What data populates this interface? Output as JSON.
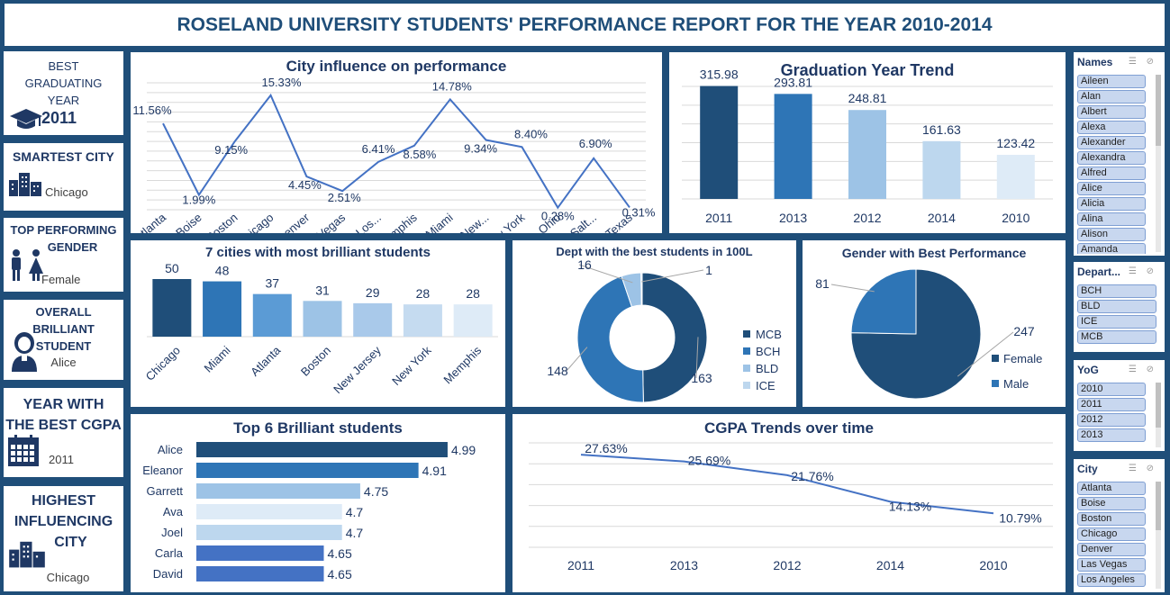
{
  "title": "ROSELAND UNIVERSITY STUDENTS' PERFORMANCE REPORT FOR THE YEAR 2010-2014",
  "kpis": {
    "best_year": {
      "line1": "BEST",
      "line2": "GRADUATING",
      "line3": "YEAR",
      "value": "2011"
    },
    "smartest_city": {
      "label": "SMARTEST CITY",
      "value": "Chicago"
    },
    "top_gender": {
      "line1": "TOP PERFORMING",
      "line2": "GENDER",
      "value": "Female"
    },
    "brilliant_student": {
      "line1": "OVERALL",
      "line2": "BRILLIANT",
      "line3": "STUDENT",
      "value": "Alice"
    },
    "best_cgpa_year": {
      "line1": "YEAR WITH",
      "line2": "THE BEST CGPA",
      "value": "2011"
    },
    "influencing_city": {
      "line1": "HIGHEST",
      "line2": "INFLUENCING",
      "line3": "CITY",
      "value": "Chicago"
    }
  },
  "charts": {
    "city_influence": {
      "title": "City influence on performance",
      "chart_data": {
        "type": "line",
        "categories": [
          "Atlanta",
          "Boise",
          "Boston",
          "Chicago",
          "Denver",
          "Las Vegas",
          "Los...",
          "Memphis",
          "Miami",
          "New...",
          "New York",
          "Ohio",
          "Salt...",
          "Texas"
        ],
        "values": [
          11.56,
          1.99,
          9.15,
          15.33,
          4.45,
          2.51,
          6.41,
          8.58,
          14.78,
          9.34,
          8.4,
          0.28,
          6.9,
          0.31
        ],
        "labels": [
          "11.56%",
          "1.99%",
          "9.15%",
          "15.33%",
          "4.45%",
          "2.51%",
          "6.41%",
          "8.58%",
          "14.78%",
          "9.34%",
          "8.40%",
          "0.28%",
          "6.90%",
          "0.31%"
        ],
        "ylim": [
          0,
          17
        ]
      }
    },
    "grad_year": {
      "title": "Graduation Year Trend",
      "chart_data": {
        "type": "bar",
        "categories": [
          "2011",
          "2013",
          "2012",
          "2014",
          "2010"
        ],
        "values": [
          315.98,
          293.81,
          248.81,
          161.63,
          123.42
        ],
        "labels": [
          "315.98",
          "293.81",
          "248.81",
          "161.63",
          "123.42"
        ],
        "colors": [
          "#1f4e79",
          "#2e75b6",
          "#9dc3e6",
          "#bdd7ee",
          "#deebf7"
        ],
        "ylim": [
          0,
          340
        ]
      }
    },
    "brilliant_cities": {
      "title": "7 cities with most brilliant students",
      "chart_data": {
        "type": "bar",
        "categories": [
          "Chicago",
          "Miami",
          "Atlanta",
          "Boston",
          "New Jersey",
          "New York",
          "Memphis"
        ],
        "values": [
          50,
          48,
          37,
          31,
          29,
          28,
          28
        ],
        "labels": [
          "50",
          "48",
          "37",
          "31",
          "29",
          "28",
          "28"
        ],
        "colors": [
          "#1f4e79",
          "#2e75b6",
          "#5b9bd5",
          "#9dc3e6",
          "#a9c9ea",
          "#c5dbf0",
          "#deebf7"
        ],
        "ylim": [
          0,
          55
        ]
      }
    },
    "dept": {
      "title": "Dept with the best students in 100L",
      "chart_data": {
        "type": "pie",
        "categories": [
          "MCB",
          "BCH",
          "BLD",
          "ICE"
        ],
        "values": [
          163,
          148,
          16,
          1
        ],
        "labels": [
          "163",
          "148",
          "16",
          "1"
        ],
        "colors": [
          "#1f4e79",
          "#2e75b6",
          "#9dc3e6",
          "#bdd7ee"
        ]
      }
    },
    "gender": {
      "title": "Gender with Best Performance",
      "chart_data": {
        "type": "pie",
        "categories": [
          "Female",
          "Male"
        ],
        "values": [
          247,
          81
        ],
        "labels": [
          "247",
          "81"
        ],
        "colors": [
          "#1f4e79",
          "#2e75b6"
        ]
      }
    },
    "top_students": {
      "title": "Top 6 Brilliant students",
      "chart_data": {
        "type": "bar",
        "categories": [
          "Alice",
          "Eleanor",
          "Garrett",
          "Ava",
          "Joel",
          "Carla",
          "David"
        ],
        "values": [
          4.99,
          4.91,
          4.75,
          4.7,
          4.7,
          4.65,
          4.65
        ],
        "labels": [
          "4.99",
          "4.91",
          "4.75",
          "4.7",
          "4.7",
          "4.65",
          "4.65"
        ],
        "colors": [
          "#1f4e79",
          "#2e75b6",
          "#9dc3e6",
          "#deebf7",
          "#bdd7ee",
          "#4472c4",
          "#4472c4"
        ],
        "xlim": [
          4.3,
          5.0
        ]
      }
    },
    "cgpa_trend": {
      "title": "CGPA Trends over time",
      "chart_data": {
        "type": "line",
        "categories": [
          "2011",
          "2013",
          "2012",
          "2014",
          "2010"
        ],
        "values": [
          27.63,
          25.69,
          21.76,
          14.13,
          10.79
        ],
        "labels": [
          "27.63%",
          "25.69%",
          "21.76%",
          "14.13%",
          "10.79%"
        ],
        "ylim": [
          0,
          30
        ]
      }
    }
  },
  "slicers": {
    "names": {
      "header": "Names",
      "items": [
        "Aileen",
        "Alan",
        "Albert",
        "Alexa",
        "Alexander",
        "Alexandra",
        "Alfred",
        "Alice",
        "Alicia",
        "Alina",
        "Alison",
        "Amanda"
      ]
    },
    "dept": {
      "header": "Depart...",
      "items": [
        "BCH",
        "BLD",
        "ICE",
        "MCB"
      ]
    },
    "yog": {
      "header": "YoG",
      "items": [
        "2010",
        "2011",
        "2012",
        "2013"
      ]
    },
    "city": {
      "header": "City",
      "items": [
        "Atlanta",
        "Boise",
        "Boston",
        "Chicago",
        "Denver",
        "Las Vegas",
        "Los Angeles"
      ]
    }
  }
}
